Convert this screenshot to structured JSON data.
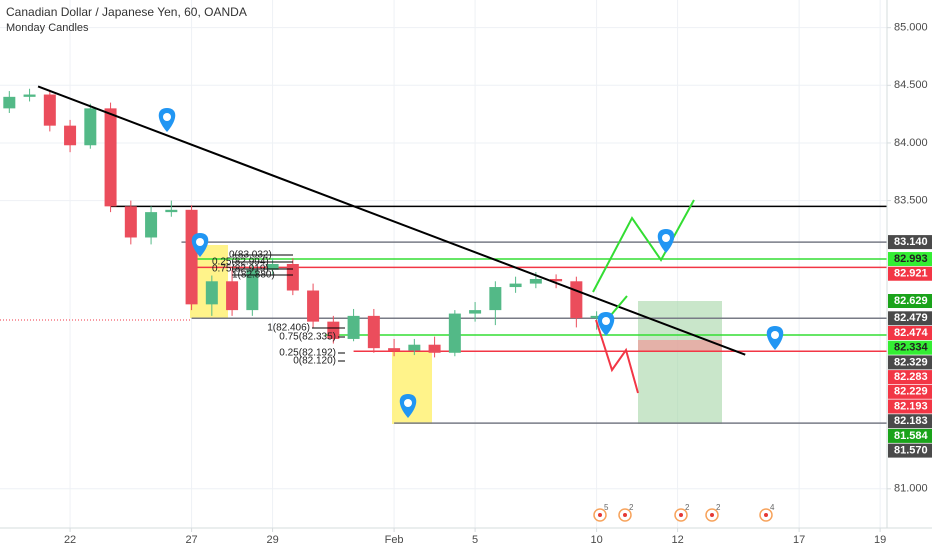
{
  "chart_data": {
    "type": "candlestick",
    "title": "Canadian Dollar / Japanese Yen, 60, OANDA",
    "subtitle": "Monday Candles",
    "up_color": "#53b987",
    "down_color": "#eb4d5c",
    "xlim": [
      -1.73,
      20.17
    ],
    "ylim": [
      80.66,
      85.24
    ],
    "xticks": [
      {
        "value": 0,
        "label": "22"
      },
      {
        "value": 3,
        "label": "27"
      },
      {
        "value": 5,
        "label": "29"
      },
      {
        "value": 8,
        "label": "Feb"
      },
      {
        "value": 10,
        "label": "5"
      },
      {
        "value": 13,
        "label": "10"
      },
      {
        "value": 15,
        "label": "12"
      },
      {
        "value": 18,
        "label": "17"
      },
      {
        "value": 20,
        "label": "19"
      }
    ],
    "yticks": [
      {
        "value": 85,
        "label": "85.000"
      },
      {
        "value": 84.5,
        "label": "84.500"
      },
      {
        "value": 84,
        "label": "84.000"
      },
      {
        "value": 83.5,
        "label": "83.500"
      },
      {
        "value": 81,
        "label": "81.000"
      }
    ],
    "grid": true,
    "candles": {
      "x": [
        -1.5,
        -1,
        -0.5,
        0,
        0.5,
        1,
        1.5,
        2,
        2.5,
        3,
        3.5,
        4,
        4.5,
        5,
        5.5,
        6,
        6.5,
        7,
        7.5,
        8,
        8.5,
        9,
        9.5,
        10,
        10.5,
        11,
        11.5,
        12,
        12.5,
        13
      ],
      "open": [
        84.3,
        84.4,
        84.42,
        84.15,
        83.98,
        84.3,
        83.45,
        83.18,
        83.4,
        83.42,
        82.6,
        82.8,
        82.55,
        82.9,
        82.95,
        82.72,
        82.45,
        82.3,
        82.5,
        82.22,
        82.2,
        82.25,
        82.18,
        82.52,
        82.55,
        82.75,
        82.78,
        82.82,
        82.8,
        82.48
      ],
      "high": [
        84.45,
        84.47,
        84.46,
        84.2,
        84.34,
        84.35,
        83.5,
        83.45,
        83.5,
        83.46,
        82.85,
        82.9,
        82.95,
        83.0,
        83.0,
        82.78,
        82.5,
        82.56,
        82.56,
        82.3,
        82.3,
        82.32,
        82.55,
        82.62,
        82.8,
        82.84,
        82.88,
        82.86,
        82.84,
        82.54
      ],
      "low": [
        84.26,
        84.36,
        84.1,
        83.92,
        83.95,
        83.4,
        83.12,
        83.12,
        83.36,
        82.55,
        82.5,
        82.5,
        82.5,
        82.86,
        82.68,
        82.4,
        82.26,
        82.28,
        82.18,
        82.15,
        82.16,
        82.14,
        82.15,
        82.45,
        82.42,
        82.7,
        82.74,
        82.74,
        82.4,
        82.38
      ],
      "close": [
        84.4,
        84.42,
        84.15,
        83.98,
        84.3,
        83.45,
        83.18,
        83.4,
        83.42,
        82.6,
        82.8,
        82.55,
        82.9,
        82.95,
        82.72,
        82.45,
        82.3,
        82.5,
        82.22,
        82.2,
        82.25,
        82.18,
        82.52,
        82.55,
        82.75,
        82.78,
        82.82,
        82.8,
        82.48,
        82.5
      ]
    },
    "levels": [
      {
        "value": 83.45,
        "x0": 1.0,
        "color": "#000000"
      },
      {
        "value": 83.14,
        "x0": 2.75,
        "color": "#787b86"
      },
      {
        "value": 82.993,
        "x0": 3.0,
        "color": "#33dd33"
      },
      {
        "value": 82.921,
        "x0": 3.0,
        "color": "#f23645"
      },
      {
        "value": 82.479,
        "x0": 3.0,
        "color": "#787b86"
      },
      {
        "value": 82.334,
        "x0": 6.3,
        "color": "#33dd33"
      },
      {
        "value": 82.193,
        "x0": 7.0,
        "color": "#f23645"
      },
      {
        "value": 81.57,
        "x0": 8.0,
        "color": "#787b86"
      }
    ],
    "trend_line": {
      "x": [
        -0.79,
        16.67
      ],
      "y": [
        84.49,
        82.163
      ],
      "color": "#000000"
    },
    "price_labels": [
      {
        "value": 83.14,
        "label": "83.140",
        "color": "#4a4a4a"
      },
      {
        "value": 82.993,
        "label": "82.993",
        "color": "#33ee33"
      },
      {
        "value": 82.921,
        "label": "82.921",
        "color": "#f23645"
      },
      {
        "value": 82.629,
        "label": "82.629",
        "color": "#1aa31a"
      },
      {
        "value": 82.479,
        "label": "82.479",
        "color": "#4a4a4a"
      },
      {
        "value": 82.474,
        "label": "82.474",
        "color": "#f23645"
      },
      {
        "value": 82.334,
        "label": "82.334",
        "color": "#33ee33"
      },
      {
        "value": 82.329,
        "label": "82.329",
        "color": "#4a4a4a"
      },
      {
        "value": 82.283,
        "label": "82.283",
        "color": "#f23645"
      },
      {
        "value": 82.229,
        "label": "82.229",
        "color": "#f23645"
      },
      {
        "value": 82.193,
        "label": "82.193",
        "color": "#f23645"
      },
      {
        "value": 82.183,
        "label": "82.183",
        "color": "#4a4a4a"
      },
      {
        "value": 81.584,
        "label": "81.584",
        "color": "#1aa31a"
      },
      {
        "value": 81.57,
        "label": "81.570",
        "color": "#4a4a4a"
      }
    ],
    "fib_upper": [
      "0(83.032)",
      "0.25(82.994)",
      "0.75(82.919)",
      "1(82.880)"
    ],
    "fib_lower": [
      "1(82.406)",
      "0.75(82.335)",
      "0.25(82.192)",
      "0(82.120)"
    ],
    "events": [
      5,
      2,
      2,
      2,
      4
    ]
  }
}
